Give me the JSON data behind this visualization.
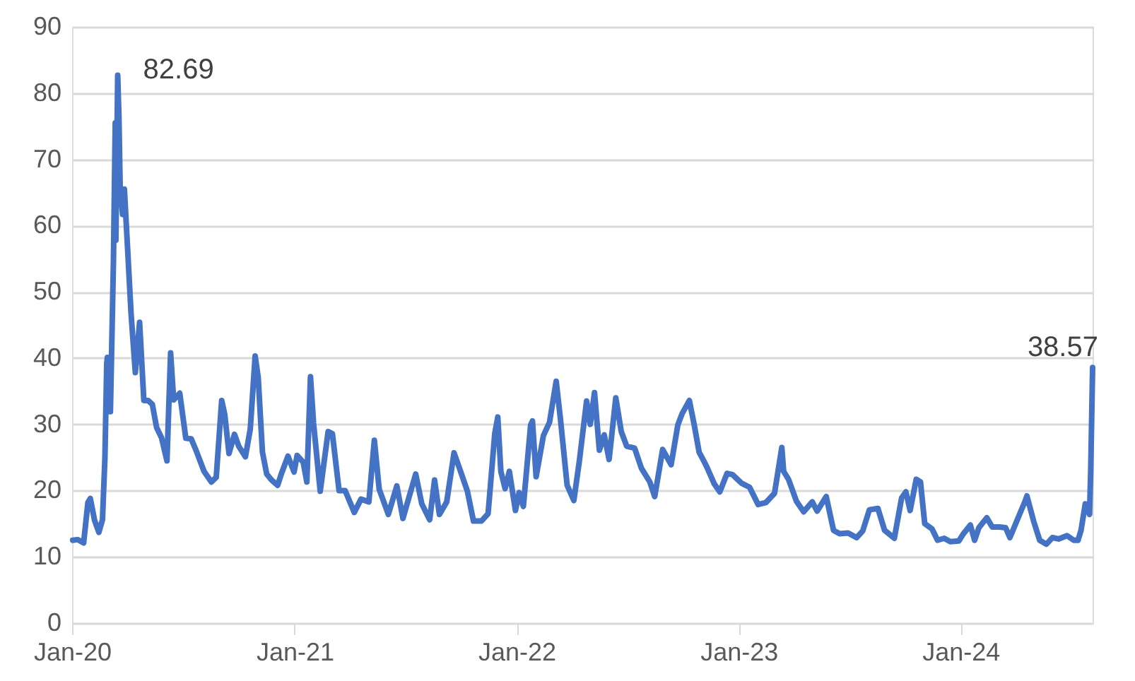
{
  "chart_data": {
    "type": "line",
    "x": [
      "2020-01-02",
      "2020-01-10",
      "2020-01-20",
      "2020-01-27",
      "2020-01-31",
      "2020-02-07",
      "2020-02-14",
      "2020-02-20",
      "2020-02-24",
      "2020-02-27",
      "2020-02-28",
      "2020-03-04",
      "2020-03-09",
      "2020-03-12",
      "2020-03-13",
      "2020-03-16",
      "2020-03-18",
      "2020-03-20",
      "2020-03-24",
      "2020-03-27",
      "2020-04-01",
      "2020-04-07",
      "2020-04-14",
      "2020-04-21",
      "2020-04-28",
      "2020-05-05",
      "2020-05-12",
      "2020-05-19",
      "2020-05-27",
      "2020-06-05",
      "2020-06-11",
      "2020-06-16",
      "2020-06-26",
      "2020-07-06",
      "2020-07-15",
      "2020-07-24",
      "2020-08-05",
      "2020-08-17",
      "2020-08-25",
      "2020-09-03",
      "2020-09-08",
      "2020-09-15",
      "2020-09-24",
      "2020-10-01",
      "2020-10-12",
      "2020-10-20",
      "2020-10-28",
      "2020-11-02",
      "2020-11-09",
      "2020-11-16",
      "2020-11-24",
      "2020-12-04",
      "2020-12-10",
      "2020-12-21",
      "2020-12-31",
      "2021-01-05",
      "2021-01-15",
      "2021-01-21",
      "2021-01-27",
      "2021-02-01",
      "2021-02-12",
      "2021-02-25",
      "2021-03-04",
      "2021-03-15",
      "2021-03-25",
      "2021-04-09",
      "2021-04-20",
      "2021-05-03",
      "2021-05-12",
      "2021-05-20",
      "2021-06-04",
      "2021-06-18",
      "2021-06-28",
      "2021-07-08",
      "2021-07-19",
      "2021-07-29",
      "2021-08-11",
      "2021-08-19",
      "2021-08-27",
      "2021-09-08",
      "2021-09-20",
      "2021-09-30",
      "2021-10-12",
      "2021-10-22",
      "2021-11-04",
      "2021-11-15",
      "2021-11-26",
      "2021-12-01",
      "2021-12-06",
      "2021-12-13",
      "2021-12-20",
      "2021-12-30",
      "2022-01-05",
      "2022-01-12",
      "2022-01-24",
      "2022-01-27",
      "2022-02-02",
      "2022-02-14",
      "2022-02-24",
      "2022-03-07",
      "2022-03-14",
      "2022-03-25",
      "2022-04-05",
      "2022-04-14",
      "2022-04-26",
      "2022-05-02",
      "2022-05-09",
      "2022-05-17",
      "2022-05-25",
      "2022-06-02",
      "2022-06-13",
      "2022-06-22",
      "2022-07-01",
      "2022-07-14",
      "2022-07-25",
      "2022-08-08",
      "2022-08-16",
      "2022-08-29",
      "2022-09-12",
      "2022-09-23",
      "2022-09-30",
      "2022-10-12",
      "2022-10-20",
      "2022-10-28",
      "2022-11-04",
      "2022-11-10",
      "2022-11-22",
      "2022-12-01",
      "2022-12-13",
      "2022-12-22",
      "2022-12-30",
      "2023-01-06",
      "2023-01-19",
      "2023-02-02",
      "2023-02-15",
      "2023-03-01",
      "2023-03-13",
      "2023-03-16",
      "2023-03-24",
      "2023-04-06",
      "2023-04-18",
      "2023-05-02",
      "2023-05-10",
      "2023-05-25",
      "2023-06-06",
      "2023-06-16",
      "2023-06-30",
      "2023-07-14",
      "2023-07-24",
      "2023-08-04",
      "2023-08-18",
      "2023-08-29",
      "2023-09-14",
      "2023-09-26",
      "2023-10-03",
      "2023-10-10",
      "2023-10-20",
      "2023-10-27",
      "2023-11-03",
      "2023-11-15",
      "2023-11-24",
      "2023-12-05",
      "2023-12-15",
      "2023-12-29",
      "2024-01-05",
      "2024-01-17",
      "2024-01-24",
      "2024-01-31",
      "2024-02-13",
      "2024-02-22",
      "2024-03-05",
      "2024-03-15",
      "2024-03-22",
      "2024-04-05",
      "2024-04-16",
      "2024-04-19",
      "2024-04-30",
      "2024-05-10",
      "2024-05-21",
      "2024-05-31",
      "2024-06-10",
      "2024-06-24",
      "2024-07-05",
      "2024-07-12",
      "2024-07-17",
      "2024-07-24",
      "2024-07-31",
      "2024-08-02",
      "2024-08-05"
    ],
    "series": [
      {
        "color": "#4472c4",
        "values": [
          12.5,
          12.6,
          12.1,
          18.2,
          18.8,
          15.5,
          13.7,
          15.6,
          25,
          39.2,
          40.1,
          31.9,
          54.5,
          75.5,
          57.8,
          82.69,
          76.5,
          66,
          61.7,
          65.5,
          57,
          46.7,
          37.8,
          45.4,
          33.6,
          33.6,
          33,
          29.5,
          28,
          24.5,
          40.8,
          33.7,
          34.7,
          27.9,
          27.8,
          25.8,
          22.9,
          21.3,
          22,
          33.6,
          31.5,
          25.6,
          28.5,
          26.7,
          25.1,
          29.3,
          40.3,
          37.1,
          25.8,
          22.5,
          21.6,
          20.8,
          22.5,
          25.2,
          22.8,
          25.3,
          24.3,
          21.3,
          37.2,
          30.2,
          19.9,
          28.9,
          28.6,
          20,
          20,
          16.7,
          18.7,
          18.3,
          27.6,
          20.2,
          16.4,
          20.7,
          15.8,
          19,
          22.5,
          18,
          15.6,
          21.6,
          16.4,
          18.3,
          25.7,
          23.1,
          19.9,
          15.4,
          15.4,
          16.5,
          28.6,
          31.1,
          22.9,
          20.3,
          22.9,
          17,
          19.7,
          17.6,
          29.9,
          30.5,
          22.1,
          28.3,
          30.3,
          36.5,
          30.8,
          20.8,
          18.5,
          24.4,
          33.5,
          30,
          34.8,
          26.1,
          28.4,
          24.7,
          34,
          28.9,
          26.7,
          26.4,
          23.4,
          21.3,
          19.1,
          26.2,
          23.9,
          29.9,
          31.6,
          33.6,
          29.9,
          25.8,
          24.6,
          23.5,
          21,
          19.8,
          22.6,
          22.4,
          21.7,
          21.1,
          20.5,
          17.9,
          18.2,
          19.6,
          26.5,
          22.9,
          21.7,
          18.4,
          16.8,
          18.3,
          16.9,
          19.1,
          14,
          13.5,
          13.6,
          12.9,
          13.9,
          17.1,
          17.3,
          14,
          12.8,
          18.9,
          19.8,
          17,
          21.7,
          21.3,
          15,
          14.2,
          12.5,
          12.8,
          12.3,
          12.4,
          13.4,
          14.8,
          12.5,
          14.4,
          15.9,
          14.5,
          14.5,
          14.4,
          12.9,
          16,
          18.4,
          19.2,
          15.4,
          12.5,
          11.9,
          12.9,
          12.7,
          13.2,
          12.5,
          12.5,
          14,
          18,
          16.4,
          23.4,
          38.57
        ]
      }
    ],
    "xlim": [
      "2020-01-01",
      "2024-08-05"
    ],
    "xticks": [
      {
        "value": "2020-01-01",
        "label": "Jan-20"
      },
      {
        "value": "2021-01-01",
        "label": "Jan-21"
      },
      {
        "value": "2022-01-01",
        "label": "Jan-22"
      },
      {
        "value": "2023-01-01",
        "label": "Jan-23"
      },
      {
        "value": "2024-01-01",
        "label": "Jan-24"
      }
    ],
    "ylim": [
      0,
      90
    ],
    "yticks": [
      0,
      10,
      20,
      30,
      40,
      50,
      60,
      70,
      80,
      90
    ],
    "grid": "y",
    "marker": "none",
    "line_style": "solid",
    "annotations": [
      {
        "text": "82.69",
        "x": "2020-03-16",
        "y": 82.69
      },
      {
        "text": "38.57",
        "x": "2024-08-05",
        "y": 38.57
      }
    ]
  }
}
